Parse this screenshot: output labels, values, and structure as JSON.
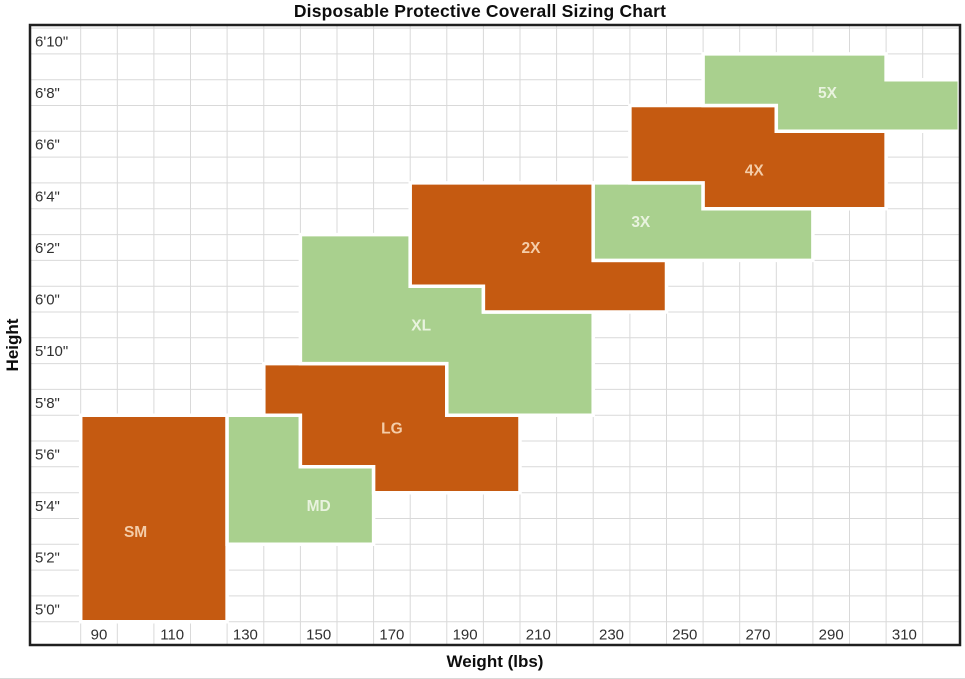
{
  "chart_data": {
    "type": "area",
    "subtype": "step-region-sizing-chart",
    "title": "Disposable Protective Coverall Sizing Chart",
    "xlabel": "Weight (lbs)",
    "ylabel": "Height",
    "x_unit": "lbs",
    "y_unit": "inches",
    "x_axis": {
      "tick_labels": [
        90,
        110,
        130,
        150,
        170,
        190,
        210,
        230,
        250,
        270,
        290,
        310
      ],
      "tick_step": 20,
      "gridline_min": 85,
      "gridline_max": 315,
      "gridline_step": 10,
      "domain_min": 71.2,
      "domain_max": 325.3
    },
    "y_axis": {
      "tick_labels": [
        {
          "label": "5'0\"",
          "inches": 60
        },
        {
          "label": "5'2\"",
          "inches": 62
        },
        {
          "label": "5'4\"",
          "inches": 64
        },
        {
          "label": "5'6\"",
          "inches": 66
        },
        {
          "label": "5'8\"",
          "inches": 68
        },
        {
          "label": "5'10\"",
          "inches": 70
        },
        {
          "label": "6'0\"",
          "inches": 72
        },
        {
          "label": "6'2\"",
          "inches": 74
        },
        {
          "label": "6'4\"",
          "inches": 76
        },
        {
          "label": "6'6\"",
          "inches": 78
        },
        {
          "label": "6'8\"",
          "inches": 80
        },
        {
          "label": "6'10\"",
          "inches": 82
        }
      ],
      "gridline_min": 60.5,
      "gridline_max": 82.5,
      "gridline_step": 1,
      "domain_min": 59.5,
      "domain_max": 82.6
    },
    "grid": true,
    "legend": "none",
    "colors": {
      "orange": "#C55A11",
      "green": "#A9D08E",
      "label_on_orange": "#F4CDA9",
      "label_on_green": "#E9F3DF",
      "gridline": "#D9D9D9",
      "border": "#1f1f1f",
      "region_outline": "#FFFFFF"
    },
    "regions": [
      {
        "size": "SM",
        "color": "orange",
        "label_at": {
          "weight": 100,
          "height_in": 63
        },
        "bands": [
          {
            "weight_lbs": [
              85,
              125
            ],
            "height_in": [
              59.5,
              67.5
            ]
          }
        ]
      },
      {
        "size": "MD",
        "color": "green",
        "label_at": {
          "weight": 150,
          "height_in": 64
        },
        "bands": [
          {
            "weight_lbs": [
              125,
              145
            ],
            "height_in": [
              62.5,
              67.5
            ]
          },
          {
            "weight_lbs": [
              145,
              165
            ],
            "height_in": [
              62.5,
              65.5
            ]
          }
        ]
      },
      {
        "size": "LG",
        "color": "orange",
        "label_at": {
          "weight": 170,
          "height_in": 67
        },
        "bands": [
          {
            "weight_lbs": [
              135,
              145
            ],
            "height_in": [
              67.5,
              69.5
            ]
          },
          {
            "weight_lbs": [
              145,
              165
            ],
            "height_in": [
              65.5,
              69.5
            ]
          },
          {
            "weight_lbs": [
              165,
              185
            ],
            "height_in": [
              64.5,
              69.5
            ]
          },
          {
            "weight_lbs": [
              185,
              205
            ],
            "height_in": [
              64.5,
              67.5
            ]
          }
        ]
      },
      {
        "size": "XL",
        "color": "green",
        "label_at": {
          "weight": 178,
          "height_in": 71
        },
        "bands": [
          {
            "weight_lbs": [
              145,
              175
            ],
            "height_in": [
              69.5,
              74.5
            ]
          },
          {
            "weight_lbs": [
              175,
              185
            ],
            "height_in": [
              69.5,
              72.5
            ]
          },
          {
            "weight_lbs": [
              185,
              195
            ],
            "height_in": [
              67.5,
              72.5
            ]
          },
          {
            "weight_lbs": [
              195,
              225
            ],
            "height_in": [
              67.5,
              71.5
            ]
          }
        ]
      },
      {
        "size": "2X",
        "color": "orange",
        "label_at": {
          "weight": 208,
          "height_in": 74
        },
        "bands": [
          {
            "weight_lbs": [
              175,
              195
            ],
            "height_in": [
              72.5,
              76.5
            ]
          },
          {
            "weight_lbs": [
              195,
              225
            ],
            "height_in": [
              71.5,
              76.5
            ]
          },
          {
            "weight_lbs": [
              225,
              245
            ],
            "height_in": [
              71.5,
              73.5
            ]
          }
        ]
      },
      {
        "size": "3X",
        "color": "green",
        "label_at": {
          "weight": 238,
          "height_in": 75
        },
        "bands": [
          {
            "weight_lbs": [
              225,
              255
            ],
            "height_in": [
              73.5,
              76.5
            ]
          },
          {
            "weight_lbs": [
              255,
              285
            ],
            "height_in": [
              73.5,
              75.5
            ]
          }
        ]
      },
      {
        "size": "4X",
        "color": "orange",
        "label_at": {
          "weight": 269,
          "height_in": 77
        },
        "bands": [
          {
            "weight_lbs": [
              235,
              255
            ],
            "height_in": [
              76.5,
              79.5
            ]
          },
          {
            "weight_lbs": [
              255,
              275
            ],
            "height_in": [
              75.5,
              79.5
            ]
          },
          {
            "weight_lbs": [
              275,
              305
            ],
            "height_in": [
              75.5,
              78.5
            ]
          }
        ]
      },
      {
        "size": "5X",
        "color": "green",
        "label_at": {
          "weight": 289,
          "height_in": 80
        },
        "bands": [
          {
            "weight_lbs": [
              255,
              275
            ],
            "height_in": [
              79.5,
              81.5
            ]
          },
          {
            "weight_lbs": [
              275,
              305
            ],
            "height_in": [
              78.5,
              81.5
            ]
          },
          {
            "weight_lbs": [
              305,
              325
            ],
            "height_in": [
              78.5,
              80.5
            ]
          }
        ]
      }
    ]
  }
}
